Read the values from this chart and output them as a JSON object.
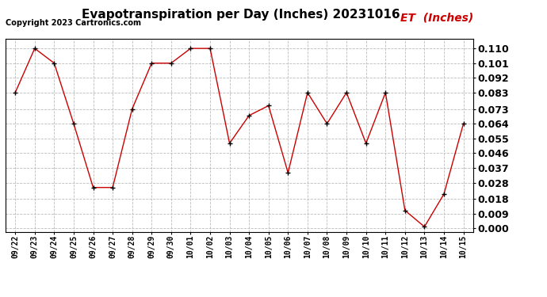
{
  "title": "Evapotranspiration per Day (Inches) 20231016",
  "legend_label": "ET  (Inches)",
  "copyright": "Copyright 2023 Cartronics.com",
  "dates": [
    "09/22",
    "09/23",
    "09/24",
    "09/25",
    "09/26",
    "09/27",
    "09/28",
    "09/29",
    "09/30",
    "10/01",
    "10/02",
    "10/03",
    "10/04",
    "10/05",
    "10/06",
    "10/07",
    "10/08",
    "10/09",
    "10/10",
    "10/11",
    "10/12",
    "10/13",
    "10/14",
    "10/15"
  ],
  "values": [
    0.083,
    0.11,
    0.101,
    0.064,
    0.025,
    0.025,
    0.073,
    0.101,
    0.101,
    0.11,
    0.11,
    0.052,
    0.069,
    0.075,
    0.034,
    0.083,
    0.064,
    0.083,
    0.052,
    0.083,
    0.011,
    0.001,
    0.021,
    0.064
  ],
  "line_color": "#cc0000",
  "marker_color": "#000000",
  "bg_color": "#ffffff",
  "grid_color": "#bbbbbb",
  "ylim_min": -0.002,
  "ylim_max": 0.116,
  "yticks": [
    0.0,
    0.009,
    0.018,
    0.028,
    0.037,
    0.046,
    0.055,
    0.064,
    0.073,
    0.083,
    0.092,
    0.101,
    0.11
  ],
  "title_fontsize": 11,
  "legend_fontsize": 10,
  "copyright_fontsize": 7,
  "tick_fontsize": 9,
  "xtick_fontsize": 7
}
